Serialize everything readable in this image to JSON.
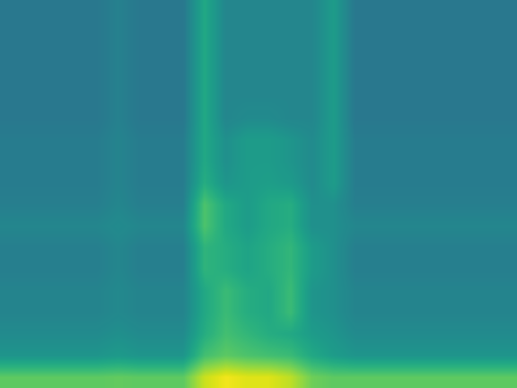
{
  "chart_data": {
    "type": "heatmap",
    "color": "viridis",
    "tick_labels": false,
    "zlim": [
      0,
      1
    ],
    "cells": [
      [
        0.4,
        0.4,
        0.4,
        0.4,
        0.4,
        0.44,
        0.4,
        0.4,
        0.4,
        0.6,
        0.46,
        0.46,
        0.46,
        0.46,
        0.46,
        0.55,
        0.4,
        0.4,
        0.4,
        0.4,
        0.4,
        0.4,
        0.4,
        0.4
      ],
      [
        0.4,
        0.4,
        0.4,
        0.4,
        0.4,
        0.44,
        0.4,
        0.4,
        0.4,
        0.6,
        0.46,
        0.46,
        0.46,
        0.46,
        0.46,
        0.55,
        0.4,
        0.4,
        0.4,
        0.4,
        0.4,
        0.4,
        0.4,
        0.4
      ],
      [
        0.4,
        0.4,
        0.4,
        0.4,
        0.4,
        0.44,
        0.4,
        0.4,
        0.4,
        0.6,
        0.46,
        0.46,
        0.46,
        0.46,
        0.46,
        0.55,
        0.4,
        0.4,
        0.4,
        0.4,
        0.4,
        0.4,
        0.4,
        0.4
      ],
      [
        0.4,
        0.4,
        0.4,
        0.4,
        0.4,
        0.44,
        0.4,
        0.4,
        0.4,
        0.6,
        0.46,
        0.46,
        0.46,
        0.46,
        0.46,
        0.55,
        0.4,
        0.4,
        0.4,
        0.4,
        0.4,
        0.4,
        0.4,
        0.4
      ],
      [
        0.4,
        0.4,
        0.4,
        0.4,
        0.4,
        0.44,
        0.4,
        0.4,
        0.4,
        0.6,
        0.46,
        0.46,
        0.46,
        0.46,
        0.46,
        0.55,
        0.4,
        0.4,
        0.4,
        0.4,
        0.4,
        0.4,
        0.4,
        0.4
      ],
      [
        0.4,
        0.4,
        0.4,
        0.4,
        0.4,
        0.44,
        0.4,
        0.4,
        0.4,
        0.6,
        0.46,
        0.48,
        0.48,
        0.46,
        0.46,
        0.55,
        0.4,
        0.4,
        0.4,
        0.4,
        0.4,
        0.4,
        0.4,
        0.4
      ],
      [
        0.42,
        0.42,
        0.42,
        0.42,
        0.42,
        0.45,
        0.42,
        0.42,
        0.42,
        0.6,
        0.5,
        0.55,
        0.55,
        0.52,
        0.48,
        0.55,
        0.42,
        0.42,
        0.42,
        0.42,
        0.42,
        0.42,
        0.42,
        0.42
      ],
      [
        0.42,
        0.42,
        0.42,
        0.42,
        0.42,
        0.45,
        0.42,
        0.42,
        0.42,
        0.6,
        0.5,
        0.55,
        0.55,
        0.52,
        0.48,
        0.55,
        0.42,
        0.42,
        0.42,
        0.42,
        0.42,
        0.42,
        0.42,
        0.42
      ],
      [
        0.42,
        0.42,
        0.42,
        0.42,
        0.42,
        0.45,
        0.42,
        0.42,
        0.42,
        0.62,
        0.52,
        0.55,
        0.56,
        0.54,
        0.48,
        0.55,
        0.42,
        0.42,
        0.42,
        0.42,
        0.42,
        0.42,
        0.42,
        0.42
      ],
      [
        0.43,
        0.43,
        0.43,
        0.43,
        0.43,
        0.46,
        0.43,
        0.43,
        0.43,
        0.72,
        0.6,
        0.55,
        0.6,
        0.62,
        0.5,
        0.5,
        0.43,
        0.43,
        0.43,
        0.43,
        0.43,
        0.43,
        0.43,
        0.43
      ],
      [
        0.46,
        0.46,
        0.46,
        0.46,
        0.46,
        0.48,
        0.46,
        0.46,
        0.46,
        0.72,
        0.6,
        0.55,
        0.6,
        0.62,
        0.5,
        0.5,
        0.46,
        0.46,
        0.46,
        0.46,
        0.46,
        0.46,
        0.46,
        0.46
      ],
      [
        0.43,
        0.43,
        0.43,
        0.43,
        0.43,
        0.46,
        0.43,
        0.43,
        0.43,
        0.65,
        0.62,
        0.58,
        0.62,
        0.66,
        0.55,
        0.5,
        0.43,
        0.43,
        0.43,
        0.43,
        0.43,
        0.43,
        0.43,
        0.43
      ],
      [
        0.43,
        0.43,
        0.43,
        0.43,
        0.43,
        0.46,
        0.43,
        0.43,
        0.43,
        0.65,
        0.62,
        0.58,
        0.62,
        0.66,
        0.55,
        0.5,
        0.43,
        0.43,
        0.43,
        0.43,
        0.43,
        0.43,
        0.43,
        0.43
      ],
      [
        0.45,
        0.45,
        0.45,
        0.45,
        0.45,
        0.47,
        0.45,
        0.45,
        0.45,
        0.6,
        0.68,
        0.62,
        0.6,
        0.68,
        0.52,
        0.5,
        0.45,
        0.45,
        0.45,
        0.45,
        0.45,
        0.45,
        0.45,
        0.45
      ],
      [
        0.45,
        0.45,
        0.45,
        0.45,
        0.45,
        0.47,
        0.45,
        0.45,
        0.45,
        0.6,
        0.68,
        0.62,
        0.6,
        0.68,
        0.52,
        0.5,
        0.45,
        0.45,
        0.45,
        0.45,
        0.45,
        0.45,
        0.45,
        0.45
      ],
      [
        0.48,
        0.48,
        0.48,
        0.48,
        0.48,
        0.5,
        0.48,
        0.48,
        0.48,
        0.62,
        0.7,
        0.66,
        0.62,
        0.6,
        0.55,
        0.52,
        0.48,
        0.48,
        0.48,
        0.48,
        0.48,
        0.48,
        0.48,
        0.48
      ],
      [
        0.52,
        0.52,
        0.52,
        0.52,
        0.52,
        0.54,
        0.52,
        0.52,
        0.52,
        0.7,
        0.75,
        0.72,
        0.7,
        0.68,
        0.6,
        0.55,
        0.52,
        0.52,
        0.52,
        0.52,
        0.52,
        0.52,
        0.52,
        0.52
      ],
      [
        0.75,
        0.75,
        0.75,
        0.75,
        0.75,
        0.76,
        0.75,
        0.75,
        0.75,
        0.92,
        0.98,
        0.95,
        0.95,
        0.9,
        0.78,
        0.75,
        0.75,
        0.75,
        0.75,
        0.75,
        0.75,
        0.75,
        0.75,
        0.75
      ]
    ]
  }
}
